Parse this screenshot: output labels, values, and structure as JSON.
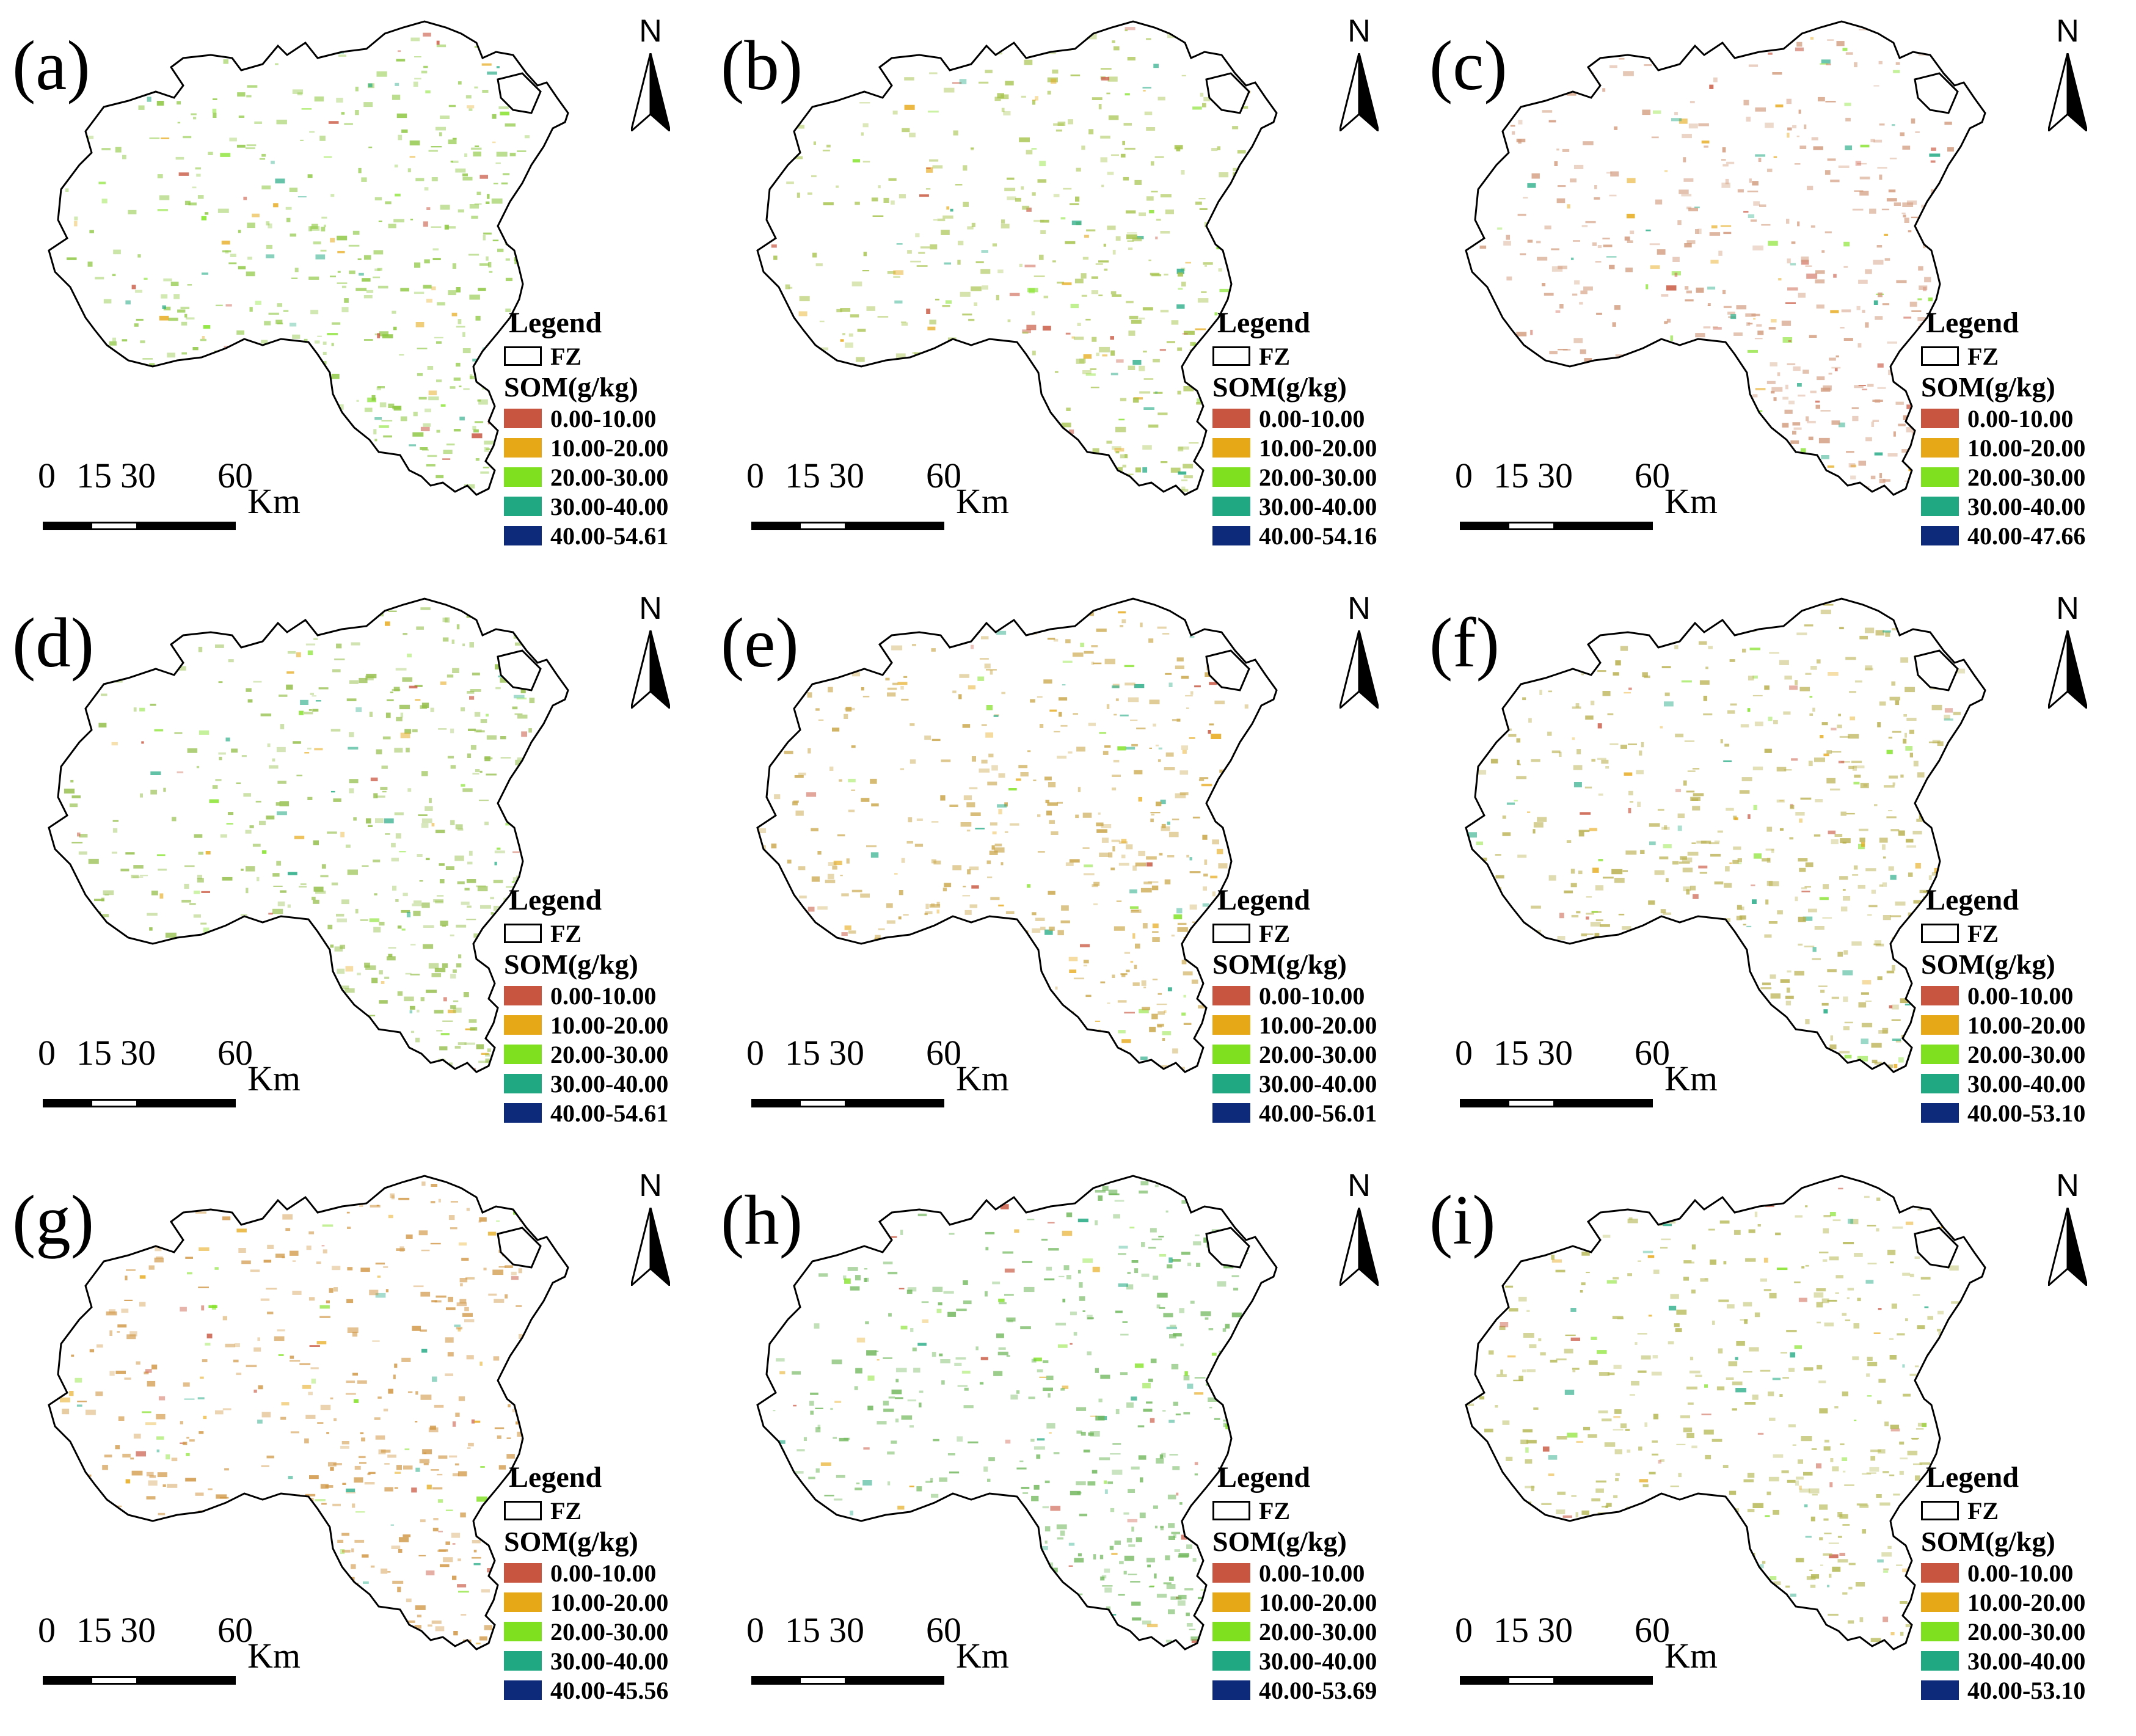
{
  "figure": {
    "north_label": "N",
    "legend_title": "Legend",
    "fz_label": "FZ",
    "som_title": "SOM(g/kg)",
    "scale_ticks": [
      "0",
      "15",
      "30",
      "60"
    ],
    "scale_unit": "Km",
    "boundary_color": "#000000"
  },
  "legend_classes": [
    {
      "label": "0.00-10.00",
      "color": "#c8553f"
    },
    {
      "label": "10.00-20.00",
      "color": "#e6a817"
    },
    {
      "label": "20.00-30.00",
      "color": "#7ee01e"
    },
    {
      "label": "30.00-40.00",
      "color": "#1fa882"
    },
    {
      "label_prefix": "40.00-",
      "color": "#0d2a7a"
    }
  ],
  "panels": [
    {
      "label": "(a)",
      "max_class_label": "40.00-54.61",
      "dominant_color": "#8cc63f"
    },
    {
      "label": "(b)",
      "max_class_label": "40.00-54.16",
      "dominant_color": "#a5c24a"
    },
    {
      "label": "(c)",
      "max_class_label": "40.00-47.66",
      "dominant_color": "#d19a7c"
    },
    {
      "label": "(d)",
      "max_class_label": "40.00-54.61",
      "dominant_color": "#93bd48"
    },
    {
      "label": "(e)",
      "max_class_label": "40.00-56.01",
      "dominant_color": "#c9a548"
    },
    {
      "label": "(f)",
      "max_class_label": "40.00-53.10",
      "dominant_color": "#b8ae4c"
    },
    {
      "label": "(g)",
      "max_class_label": "40.00-45.56",
      "dominant_color": "#cf9440"
    },
    {
      "label": "(h)",
      "max_class_label": "40.00-53.69",
      "dominant_color": "#6fb65a"
    },
    {
      "label": "(i)",
      "max_class_label": "40.00-53.10",
      "dominant_color": "#b3b650"
    }
  ]
}
